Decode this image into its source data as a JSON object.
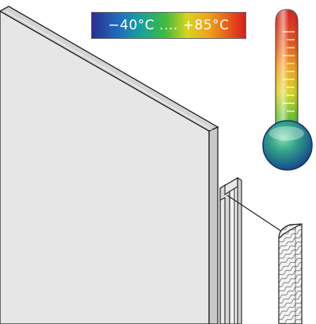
{
  "temperature_range": {
    "label": "−40°C .... +85°C",
    "gradient_colors": [
      "#2a2f8f",
      "#1f6fc0",
      "#16a39a",
      "#3fbb3c",
      "#d9d31e",
      "#f0a21a",
      "#e5531b",
      "#d41f1f"
    ]
  },
  "thermometer": {
    "icon": "thermometer-icon",
    "bulb_color": "#2a8a6a",
    "tube_gradient": [
      "#d41f1f",
      "#f0a21a",
      "#d9d31e",
      "#3fbb3c"
    ]
  },
  "illustration": {
    "panel_color": "#e6e6e6",
    "edge_color": "#d2d2d2",
    "outline_color": "#222222",
    "seal_strip": "striped-seal-icon"
  }
}
